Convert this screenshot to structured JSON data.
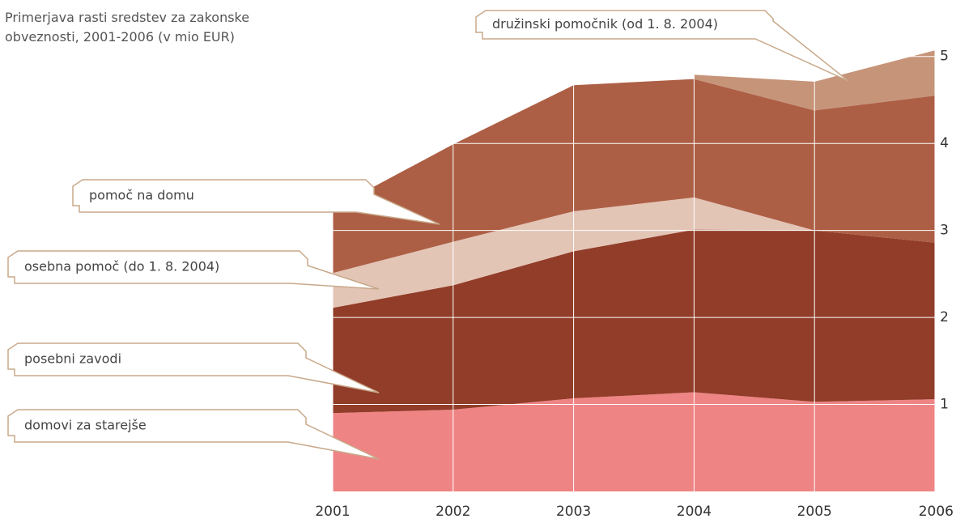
{
  "chart_data": {
    "type": "stacked_area",
    "title": "Primerjava rasti sredstev za zakonske obveznosti, 2001-2006 (v mio EUR)",
    "x": [
      2001,
      2002,
      2003,
      2004,
      2005,
      2006
    ],
    "xticks": [
      2001,
      2002,
      2003,
      2004,
      2005,
      2006
    ],
    "xlim": [
      2001,
      2006
    ],
    "ylim": [
      0,
      5.1
    ],
    "yticks": [
      1,
      2,
      3,
      4,
      5
    ],
    "grid": true,
    "series": [
      {
        "name": "domovi za starejše",
        "color": "#ef8484",
        "values": [
          0.9,
          0.94,
          1.07,
          1.14,
          1.03,
          1.06
        ]
      },
      {
        "name": "posebni zavodi",
        "color": "#923d29",
        "values": [
          1.21,
          1.43,
          1.69,
          1.87,
          1.97,
          1.8
        ]
      },
      {
        "name": "osebna pomoč (do 1. 8. 2004)",
        "color": "#e3c5b6",
        "values": [
          0.4,
          0.5,
          0.46,
          0.37,
          0,
          null
        ]
      },
      {
        "name": "pomoč na domu",
        "color": "#ad5f45",
        "values": [
          0.74,
          1.12,
          1.45,
          1.36,
          1.38,
          1.69
        ]
      },
      {
        "name": "družinski pomočnik (od 1. 8. 2004)",
        "color": "#c69479",
        "values": [
          null,
          null,
          null,
          0.05,
          0.33,
          0.52
        ]
      }
    ]
  }
}
